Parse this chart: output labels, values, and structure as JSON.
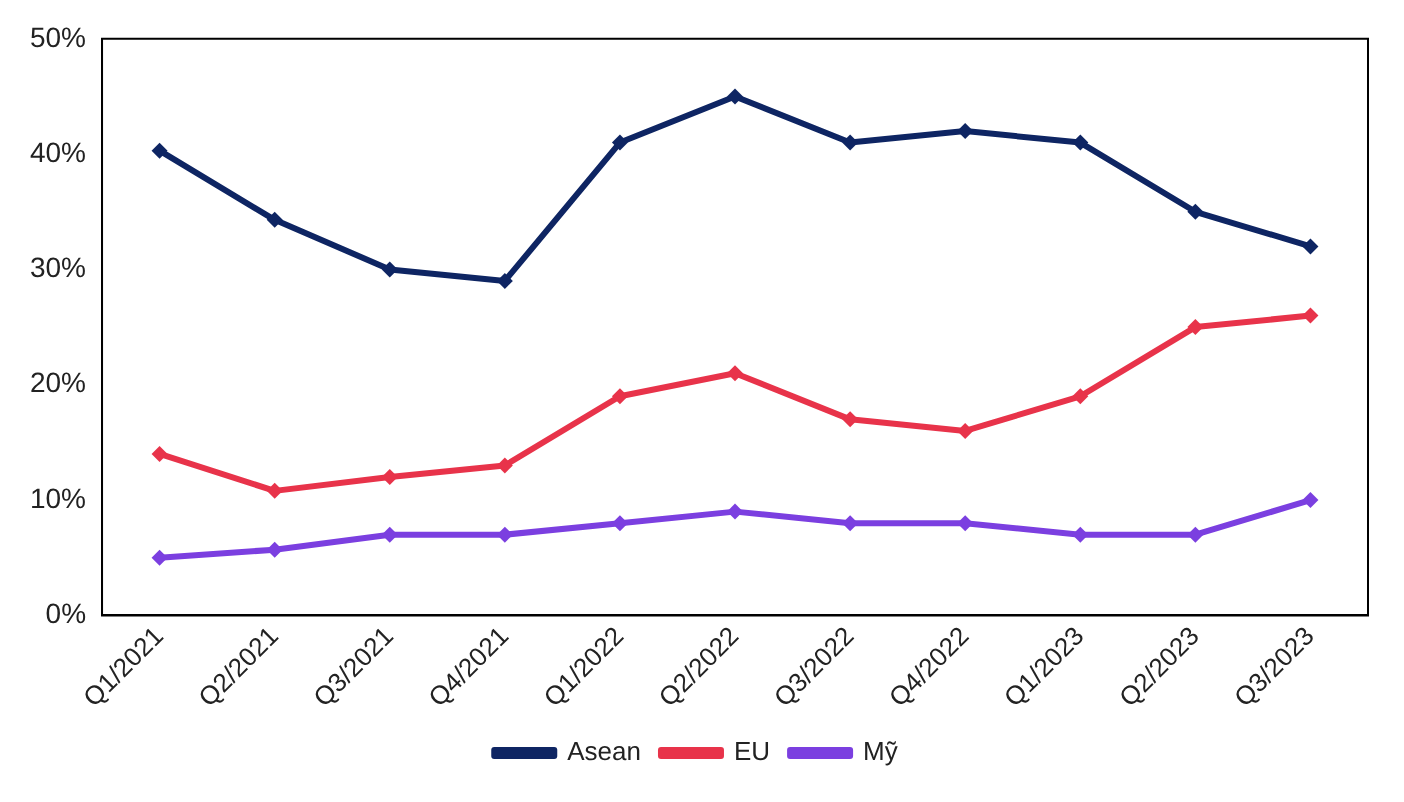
{
  "chart_data": {
    "type": "line",
    "categories": [
      "Q1/2021",
      "Q2/2021",
      "Q3/2021",
      "Q4/2021",
      "Q1/2022",
      "Q2/2022",
      "Q3/2022",
      "Q4/2022",
      "Q1/2023",
      "Q2/2023",
      "Q3/2023"
    ],
    "series": [
      {
        "name": "Asean",
        "color": "#0e2563",
        "values": [
          40.3,
          34.3,
          30,
          29,
          41,
          45,
          41,
          42,
          41,
          35,
          32
        ]
      },
      {
        "name": "EU",
        "color": "#e8334a",
        "values": [
          14,
          10.8,
          12,
          13,
          19,
          21,
          17,
          16,
          19,
          25,
          26
        ]
      },
      {
        "name": "Mỹ",
        "color": "#7b3fe0",
        "values": [
          5,
          5.7,
          7,
          7,
          8,
          9,
          8,
          8,
          7,
          7,
          10
        ]
      }
    ],
    "ylim": [
      0,
      50
    ],
    "yticks": [
      {
        "value": 0,
        "label": "0%"
      },
      {
        "value": 10,
        "label": "10%"
      },
      {
        "value": 20,
        "label": "20%"
      },
      {
        "value": 30,
        "label": "30%"
      },
      {
        "value": 40,
        "label": "40%"
      },
      {
        "value": 50,
        "label": "50%"
      }
    ],
    "grid": false,
    "legend": "bottom",
    "marker": "diamond",
    "line_style": "solid"
  }
}
